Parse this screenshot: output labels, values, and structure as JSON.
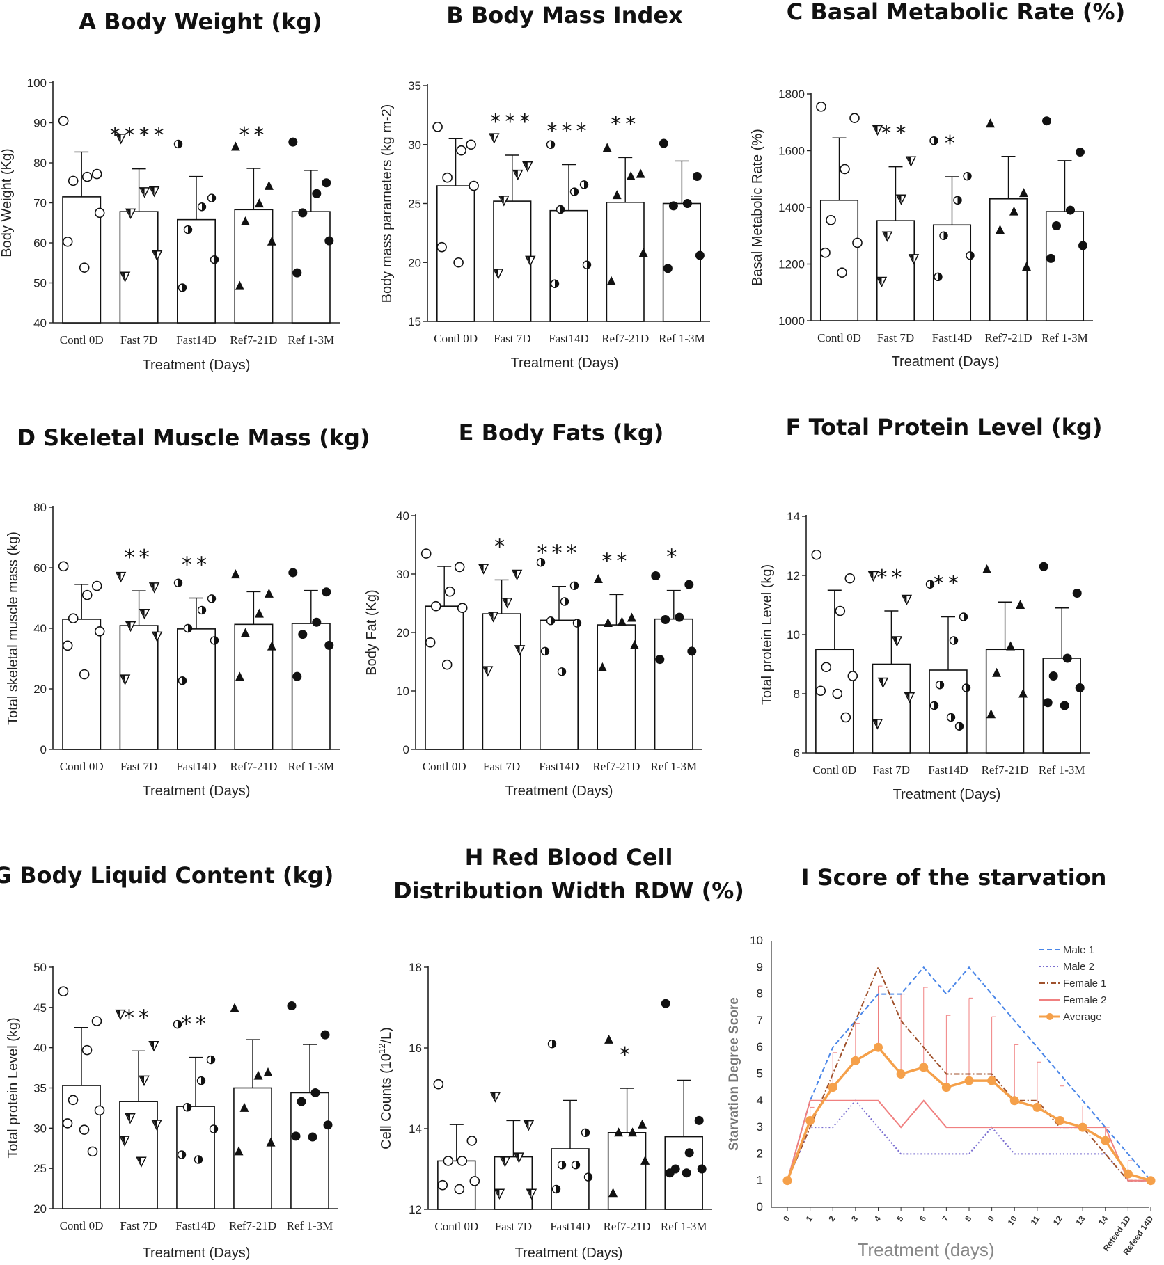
{
  "chart_data": [
    {
      "id": "A",
      "type": "bar",
      "title": "A Body Weight (kg)",
      "xlabel": "Treatment (Days)",
      "ylabel": "Body Weight (Kg)",
      "ylim": [
        40,
        100
      ],
      "yticks": [
        "40",
        "50",
        "60",
        "70",
        "80",
        "90",
        "100"
      ],
      "categories": [
        "Contl 0D",
        "Fast 7D",
        "Fast14D",
        "Ref7-21D",
        "Ref 1-3M"
      ],
      "markers": [
        "circle",
        "tri-down",
        "half",
        "tri-up",
        "filled"
      ],
      "means": [
        71.5,
        67.8,
        65.8,
        68.3,
        67.8
      ],
      "sd": [
        11.2,
        10.7,
        10.8,
        10.3,
        10.3
      ],
      "points": [
        [
          90.5,
          77.2,
          76.5,
          75.5,
          67.5,
          60.3,
          53.8
        ],
        [
          86.2,
          73,
          72.8,
          67.5,
          57,
          51.7
        ],
        [
          84.7,
          71.2,
          69,
          63.3,
          55.8,
          48.8
        ],
        [
          84,
          74.2,
          69.8,
          65.3,
          60.3,
          49.2
        ],
        [
          85.2,
          75,
          72.3,
          67.5,
          60.5,
          52.5
        ]
      ],
      "significance": [
        "",
        "****",
        "",
        "**",
        ""
      ]
    },
    {
      "id": "B",
      "type": "bar",
      "title": "B Body Mass Index",
      "xlabel": "Treatment (Days)",
      "ylabel": "Body mass parameters (kg m-2)",
      "ylim": [
        15,
        35
      ],
      "yticks": [
        "15",
        "20",
        "25",
        "30",
        "35"
      ],
      "categories": [
        "Contl 0D",
        "Fast 7D",
        "Fast14D",
        "Ref7-21D",
        "Ref 1-3M"
      ],
      "markers": [
        "circle",
        "tri-down",
        "half",
        "tri-up",
        "filled"
      ],
      "means": [
        26.5,
        25.2,
        24.4,
        25.1,
        25
      ],
      "sd": [
        4,
        3.9,
        3.9,
        3.8,
        3.6
      ],
      "points": [
        [
          31.5,
          30,
          29.5,
          27.2,
          26.5,
          21.3,
          20
        ],
        [
          30.6,
          28.2,
          27.5,
          25.3,
          20.2,
          19.1
        ],
        [
          30,
          26.6,
          26,
          24.5,
          19.8,
          18.2
        ],
        [
          29.7,
          27.5,
          27.3,
          25.7,
          20.8,
          18.4
        ],
        [
          30.1,
          27.3,
          25,
          24.8,
          20.6,
          19.5
        ]
      ],
      "significance": [
        "",
        "***",
        "***",
        "**",
        ""
      ]
    },
    {
      "id": "C",
      "type": "bar",
      "title": "C Basal Metabolic Rate (%)",
      "xlabel": "Treatment (Days)",
      "ylabel": "Basal Metabolic Rate (%)",
      "ylim": [
        1000,
        1800
      ],
      "yticks": [
        "1000",
        "1200",
        "1400",
        "1600",
        "1800"
      ],
      "categories": [
        "Contl 0D",
        "Fast 7D",
        "Fast14D",
        "Ref7-21D",
        "Ref 1-3M"
      ],
      "markers": [
        "circle",
        "tri-down",
        "half",
        "tri-up",
        "filled"
      ],
      "means": [
        1425,
        1353,
        1338,
        1430,
        1385
      ],
      "sd": [
        220,
        190,
        170,
        150,
        180
      ],
      "points": [
        [
          1755,
          1715,
          1535,
          1355,
          1275,
          1240,
          1170
        ],
        [
          1675,
          1565,
          1430,
          1300,
          1220,
          1140
        ],
        [
          1635,
          1510,
          1425,
          1300,
          1230,
          1155
        ],
        [
          1695,
          1450,
          1385,
          1320,
          1190
        ],
        [
          1705,
          1595,
          1390,
          1335,
          1265,
          1220
        ]
      ],
      "significance": [
        "",
        "**",
        "*",
        "",
        ""
      ]
    },
    {
      "id": "D",
      "type": "bar",
      "title": "D Skeletal Muscle Mass (kg)",
      "xlabel": "Treatment (Days)",
      "ylabel": "Total skeletal muscle mass (kg)",
      "ylim": [
        0,
        80
      ],
      "yticks": [
        "0",
        "20",
        "40",
        "60",
        "80"
      ],
      "categories": [
        "Contl 0D",
        "Fast 7D",
        "Fast14D",
        "Ref7-21D",
        "Ref 1-3M"
      ],
      "markers": [
        "circle",
        "tri-down",
        "half",
        "tri-up",
        "filled"
      ],
      "means": [
        43,
        40.9,
        39.8,
        41.3,
        41.6
      ],
      "sd": [
        11.5,
        11.5,
        10.2,
        10.8,
        10.9
      ],
      "points": [
        [
          60.5,
          54,
          51,
          43.3,
          39,
          34.3,
          24.8
        ],
        [
          57.2,
          53.7,
          45,
          40.9,
          37.5,
          23.3
        ],
        [
          55,
          49.8,
          46,
          40,
          36,
          22.7
        ],
        [
          57.8,
          51.4,
          44.8,
          38.4,
          34,
          23.9
        ],
        [
          58.4,
          52,
          42,
          38,
          34.4,
          24.1
        ]
      ],
      "significance": [
        "",
        "**",
        "**",
        "",
        ""
      ]
    },
    {
      "id": "E",
      "type": "bar",
      "title": "E Body Fats (kg)",
      "xlabel": "Treatment (Days)",
      "ylabel": "Body Fat (Kg)",
      "ylim": [
        0,
        40
      ],
      "yticks": [
        "0",
        "10",
        "20",
        "30",
        "40"
      ],
      "categories": [
        "Contl 0D",
        "Fast 7D",
        "Fast14D",
        "Ref7-21D",
        "Ref 1-3M"
      ],
      "markers": [
        "circle",
        "tri-down",
        "half",
        "tri-up",
        "filled"
      ],
      "means": [
        24.5,
        23.2,
        22.1,
        21.3,
        22.3
      ],
      "sd": [
        6.8,
        5.8,
        5.8,
        5.2,
        4.9
      ],
      "points": [
        [
          33.5,
          31.2,
          27,
          24.5,
          24.2,
          18.3,
          14.5
        ],
        [
          31,
          30,
          25.2,
          22.8,
          17.1,
          13.5
        ],
        [
          32,
          28,
          25.3,
          22,
          21.6,
          16.8,
          13.3
        ],
        [
          29.1,
          22.5,
          21.8,
          21.6,
          17.8,
          14
        ],
        [
          29.7,
          28.2,
          22.6,
          22.2,
          16.8,
          15.4
        ]
      ],
      "significance": [
        "",
        "*",
        "***",
        "**",
        "*"
      ]
    },
    {
      "id": "F",
      "type": "bar",
      "title": "F Total Protein Level (kg)",
      "xlabel": "Treatment (Days)",
      "ylabel": "Total protein Level (kg)",
      "ylim": [
        6,
        14
      ],
      "yticks": [
        "6",
        "8",
        "10",
        "12",
        "14"
      ],
      "categories": [
        "Contl 0D",
        "Fast 7D",
        "Fast14D",
        "Ref7-21D",
        "Ref 1-3M"
      ],
      "markers": [
        "circle",
        "tri-down",
        "half",
        "tri-up",
        "filled"
      ],
      "means": [
        9.5,
        9,
        8.8,
        9.5,
        9.2
      ],
      "sd": [
        2,
        1.8,
        1.8,
        1.6,
        1.7
      ],
      "points": [
        [
          12.7,
          11.9,
          10.8,
          8.9,
          8.6,
          8.1,
          8,
          7.2
        ],
        [
          12,
          11.2,
          9.8,
          8.4,
          7.9,
          7
        ],
        [
          11.7,
          10.6,
          9.8,
          8.3,
          8.2,
          7.6,
          7.2,
          6.9
        ],
        [
          12.2,
          11,
          9.6,
          8.7,
          8,
          7.3
        ],
        [
          12.3,
          11.4,
          9.2,
          8.6,
          8.2,
          7.7,
          7.6
        ]
      ],
      "significance": [
        "",
        "**",
        "**",
        "",
        ""
      ]
    },
    {
      "id": "G",
      "type": "bar",
      "title": "G Body Liquid Content (kg)",
      "xlabel": "Treatment (Days)",
      "ylabel": "Total protein Level (kg)",
      "ylim": [
        20,
        50
      ],
      "yticks": [
        "20",
        "25",
        "30",
        "35",
        "40",
        "45",
        "50"
      ],
      "categories": [
        "Contl 0D",
        "Fast 7D",
        "Fast14D",
        "Ref7-21D",
        "Ref 1-3M"
      ],
      "markers": [
        "circle",
        "tri-down",
        "half",
        "tri-up",
        "filled"
      ],
      "means": [
        35.3,
        33.3,
        32.7,
        35,
        34.4
      ],
      "sd": [
        7.2,
        6.3,
        6.1,
        6,
        6
      ],
      "points": [
        [
          47,
          43.3,
          39.7,
          33.5,
          32.2,
          30.6,
          29.8,
          27.1
        ],
        [
          44.2,
          40.3,
          36,
          31.3,
          30.5,
          28.5,
          25.9
        ],
        [
          42.9,
          38.5,
          35.9,
          32.6,
          29.9,
          26.7,
          26.1
        ],
        [
          44.9,
          36.9,
          36.5,
          32.5,
          28.2,
          27.1
        ],
        [
          45.2,
          41.6,
          34.4,
          33.3,
          30.4,
          29,
          28.9
        ]
      ],
      "significance": [
        "",
        "**",
        "**",
        "",
        ""
      ]
    },
    {
      "id": "H",
      "type": "bar",
      "title": "H Red Blood Cell Distribution Width  RDW (%)",
      "title_lines": [
        "H Red Blood Cell",
        "Distribution Width  RDW (%)"
      ],
      "xlabel": "Treatment (Days)",
      "ylabel": "Cell Counts (10^12/L)",
      "ylabel_parts": [
        "Cell Counts (10",
        "12",
        "/L)"
      ],
      "ylim": [
        12,
        18
      ],
      "yticks": [
        "12",
        "14",
        "16",
        "18"
      ],
      "categories": [
        "Contl 0D",
        "Fast 7D",
        "Fast14D",
        "Ref7-21D",
        "Ref 1-3M"
      ],
      "markers": [
        "circle",
        "tri-down",
        "half",
        "tri-up",
        "filled"
      ],
      "means": [
        13.2,
        13.3,
        13.5,
        13.9,
        13.8
      ],
      "sd": [
        0.9,
        0.9,
        1.2,
        1.1,
        1.4
      ],
      "points": [
        [
          15.1,
          13.7,
          13.2,
          13.2,
          12.7,
          12.6,
          12.5
        ],
        [
          14.8,
          14.1,
          13.3,
          13.2,
          12.4,
          12.4
        ],
        [
          16.1,
          13.9,
          13.1,
          13.1,
          12.8,
          12.5
        ],
        [
          16.2,
          14.1,
          13.9,
          13.9,
          13.2,
          12.4
        ],
        [
          17.1,
          14.2,
          13.4,
          13,
          13,
          12.9,
          12.9
        ]
      ],
      "significance": [
        "",
        "",
        "",
        "*",
        ""
      ]
    },
    {
      "id": "I",
      "type": "line",
      "title": "I Score of the starvation",
      "xlabel": "Treatment (days)",
      "ylabel": "Starvation Degree Score",
      "ylim": [
        0,
        10
      ],
      "yticks": [
        "0",
        "1",
        "2",
        "3",
        "4",
        "5",
        "6",
        "7",
        "8",
        "9",
        "10"
      ],
      "x": [
        "0",
        "1",
        "2",
        "3",
        "4",
        "5",
        "6",
        "7",
        "8",
        "9",
        "10",
        "11",
        "12",
        "13",
        "14",
        "Refeed 1D",
        "Refeed 14D"
      ],
      "series": [
        {
          "name": "Male 1",
          "color": "#4a86e8",
          "style": "dashed",
          "values": [
            1,
            4,
            6,
            7,
            8,
            8,
            9,
            8,
            9,
            8,
            7,
            6,
            5,
            4,
            3,
            2,
            1
          ]
        },
        {
          "name": "Male 2",
          "color": "#7b6fd0",
          "style": "dotted",
          "values": [
            1,
            3,
            3,
            4,
            3,
            2,
            2,
            2,
            2,
            3,
            2,
            2,
            2,
            2,
            2,
            1,
            1
          ]
        },
        {
          "name": "Female 1",
          "color": "#a0522d",
          "style": "dashdot",
          "values": [
            1,
            3,
            5,
            7,
            9,
            7,
            6,
            5,
            5,
            5,
            4,
            4,
            3,
            3,
            2,
            1,
            1
          ]
        },
        {
          "name": "Female 2",
          "color": "#f08080",
          "style": "solid",
          "values": [
            1,
            4,
            4,
            4,
            4,
            3,
            4,
            3,
            3,
            3,
            3,
            3,
            3,
            3,
            3,
            1,
            1
          ]
        },
        {
          "name": "Average",
          "color": "#f5a04a",
          "style": "solid-marker",
          "values": [
            1,
            3.25,
            4.5,
            5.5,
            6,
            5,
            5.25,
            4.5,
            4.75,
            4.75,
            4,
            3.75,
            3.25,
            3,
            2.5,
            1.25,
            1
          ]
        }
      ],
      "error_up": [
        0,
        0.5,
        1.3,
        1.4,
        2.3,
        3,
        3.0,
        2.7,
        3.1,
        2.4,
        2.1,
        1.7,
        1.3,
        0.8,
        0.5,
        0.5,
        0
      ]
    }
  ]
}
